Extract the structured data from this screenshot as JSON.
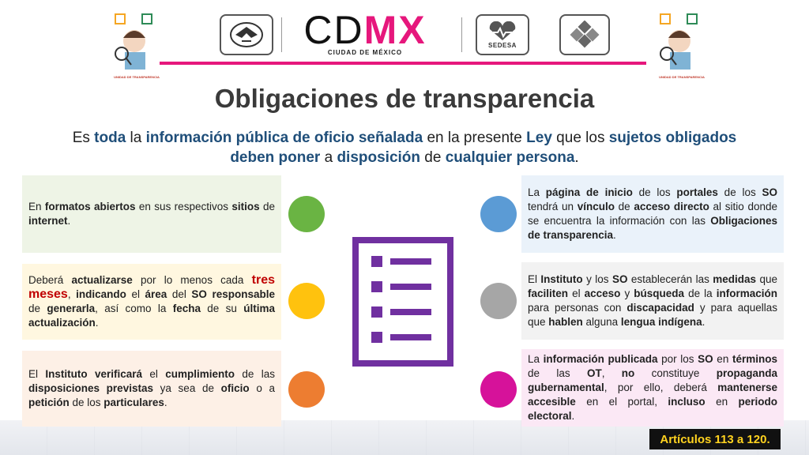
{
  "header": {
    "logo_left_text": "",
    "cdmx_cd": "CD",
    "cdmx_mx": "MX",
    "cdmx_sub": "CIUDAD DE MÉXICO",
    "sedesa": "SEDESA",
    "mascot_caption": "UNIDAD DE TRANSPARENCIA"
  },
  "title": "Obligaciones de transparencia",
  "intro": {
    "p1": "Es ",
    "p2": "toda",
    "p3": " la ",
    "p4": "información pública de oficio señalada",
    "p5": " en la presente ",
    "p6": "Ley",
    "p7": " que los ",
    "p8": "sujetos obligados",
    "p9": "deben poner",
    "p10": " a ",
    "p11": "disposición",
    "p12": " de ",
    "p13": "cualquier persona",
    "p14": "."
  },
  "cards": {
    "left1": [
      "En ",
      "formatos abiertos",
      " en sus respectivos ",
      "sitios",
      " de ",
      "internet",
      "."
    ],
    "left2": [
      "Deberá ",
      "actualizarse",
      " por lo menos cada ",
      "tres meses",
      ", ",
      "indicando",
      " el ",
      "área",
      " del ",
      "SO responsable",
      " de ",
      "generarla",
      ", así como la ",
      "fecha",
      " de su ",
      "última actualización",
      "."
    ],
    "left3": [
      "El ",
      "Instituto verificará",
      " el ",
      "cumplimiento",
      " de las ",
      "disposiciones previstas",
      " ya sea de ",
      "oficio",
      " o a ",
      "petición",
      " de los ",
      "particulares",
      "."
    ],
    "right1": [
      "La ",
      "página de inicio",
      " de los ",
      "portales",
      " de los ",
      "SO",
      " tendrá un ",
      "vínculo",
      " de ",
      "acceso directo",
      " al sitio donde se encuentra la información con las ",
      "Obligaciones de transparencia",
      "."
    ],
    "right2": [
      "El ",
      "Instituto",
      " y los ",
      "SO",
      " establecerán las ",
      "medidas",
      " que ",
      "faciliten",
      " el ",
      "acceso",
      " y ",
      "búsqueda",
      " de la ",
      "información",
      " para personas con ",
      "discapacidad",
      " y para aquellas que ",
      "hablen",
      " alguna ",
      "lengua indígena",
      "."
    ],
    "right3": [
      "La ",
      "información publicada",
      " por los ",
      "SO",
      " en ",
      "términos",
      " de las ",
      "OT",
      ", ",
      "no",
      " constituye ",
      "propaganda gubernamental",
      ", por ello, deberá ",
      "mantenerse accesible",
      " en el portal, ",
      "incluso",
      " en ",
      "periodo electoral",
      "."
    ]
  },
  "colors": {
    "accent_pink": "#e6177c",
    "title_blue": "#1f4e79",
    "green": "#6ab443",
    "yellow": "#ffc20e",
    "orange": "#ed7d31",
    "blue": "#5b9bd5",
    "gray": "#a6a6a6",
    "magenta": "#d6129a",
    "purple": "#7030a0"
  },
  "badge": "Artículos 113 a 120."
}
